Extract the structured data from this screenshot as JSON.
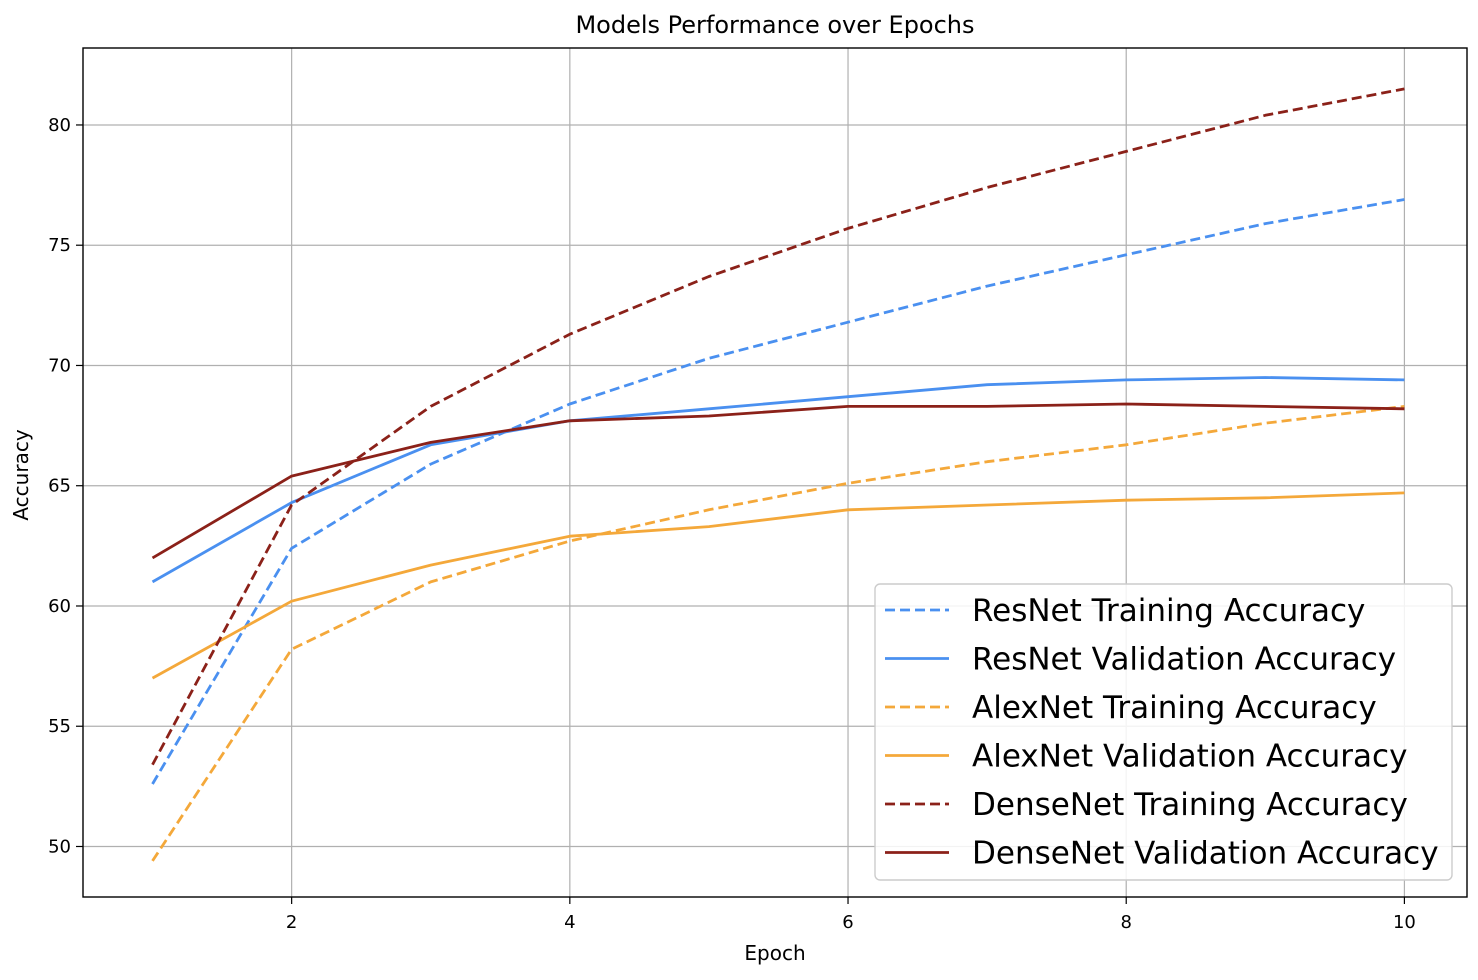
{
  "chart_data": {
    "type": "line",
    "title": "Models Performance over Epochs",
    "xlabel": "Epoch",
    "ylabel": "Accuracy",
    "xlim": [
      0.5,
      10.45
    ],
    "ylim": [
      47.9,
      83.2
    ],
    "xticks": [
      2,
      4,
      6,
      8,
      10
    ],
    "yticks": [
      50,
      55,
      60,
      65,
      70,
      75,
      80
    ],
    "grid": true,
    "legend_position": "lower right",
    "x": [
      1,
      2,
      3,
      4,
      5,
      6,
      7,
      8,
      9,
      10
    ],
    "series": [
      {
        "name": "ResNet Training Accuracy",
        "color": "#4a90f0",
        "linestyle": "dashed",
        "values": [
          52.6,
          62.4,
          65.9,
          68.4,
          70.3,
          71.8,
          73.3,
          74.6,
          75.9,
          76.9
        ]
      },
      {
        "name": "ResNet Validation Accuracy",
        "color": "#4a90f0",
        "linestyle": "solid",
        "values": [
          61.0,
          64.3,
          66.7,
          67.7,
          68.2,
          68.7,
          69.2,
          69.4,
          69.5,
          69.4
        ]
      },
      {
        "name": "AlexNet Training Accuracy",
        "color": "#f4a83a",
        "linestyle": "dashed",
        "values": [
          49.4,
          58.2,
          61.0,
          62.7,
          64.0,
          65.1,
          66.0,
          66.7,
          67.6,
          68.3
        ]
      },
      {
        "name": "AlexNet Validation Accuracy",
        "color": "#f4a83a",
        "linestyle": "solid",
        "values": [
          57.0,
          60.2,
          61.7,
          62.9,
          63.3,
          64.0,
          64.2,
          64.4,
          64.5,
          64.7
        ]
      },
      {
        "name": "DenseNet Training Accuracy",
        "color": "#8b2119",
        "linestyle": "dashed",
        "values": [
          53.4,
          64.2,
          68.3,
          71.3,
          73.7,
          75.7,
          77.4,
          78.9,
          80.4,
          81.5
        ]
      },
      {
        "name": "DenseNet Validation Accuracy",
        "color": "#8b2119",
        "linestyle": "solid",
        "values": [
          62.0,
          65.4,
          66.8,
          67.7,
          67.9,
          68.3,
          68.3,
          68.4,
          68.3,
          68.2
        ]
      }
    ]
  }
}
